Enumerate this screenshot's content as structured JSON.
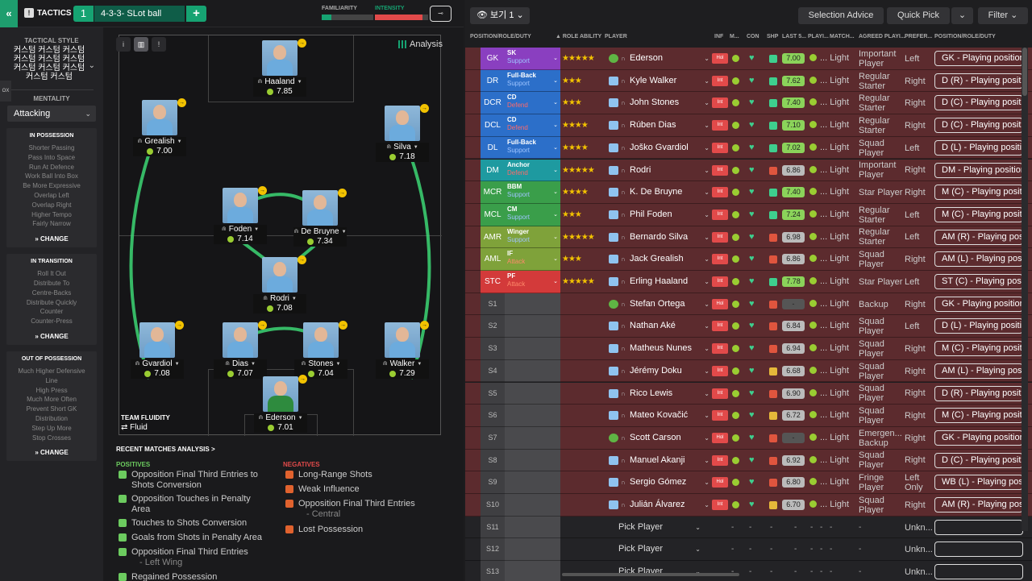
{
  "topbar": {
    "back_icon": "double-chevron-left-icon",
    "tactics_label": "TACTICS",
    "tactic_number": "1",
    "tactic_name": "4-3-3- SLot ball",
    "add_label": "+",
    "familiarity_label": "FAMILIARITY",
    "intensity_label": "INTENSITY",
    "familiarity_fraction": 0.18,
    "intensity_fraction": 0.9,
    "settings_icon": "toggle-icon"
  },
  "sidebar": {
    "tab_label": "OX",
    "tactical_style_label": "TACTICAL STYLE",
    "tactical_style_lines": [
      "커스텀 커스텀 커스텀",
      "커스텀 커스텀 커스텀",
      "커스텀 커스텀 커스텀",
      "커스텀 커스텀"
    ],
    "mentality_label": "MENTALITY",
    "mentality_value": "Attacking",
    "in_possession": {
      "title": "IN POSSESSION",
      "items": [
        "Shorter Passing",
        "Pass Into Space",
        "Run At Defence",
        "Work Ball Into Box",
        "Be More Expressive",
        "Overlap Left",
        "Overlap Right",
        "Higher Tempo",
        "Fairly Narrow"
      ],
      "change": "CHANGE"
    },
    "in_transition": {
      "title": "IN TRANSITION",
      "items": [
        "Roll It Out",
        "Distribute To",
        "Centre-Backs",
        "Distribute Quickly",
        "Counter",
        "Counter-Press"
      ],
      "change": "CHANGE"
    },
    "out_of_possession": {
      "title": "OUT OF POSSESSION",
      "items": [
        "Much Higher Defensive",
        "Line",
        "High Press",
        "Much More Often",
        "Prevent Short GK",
        "Distribution",
        "Step Up More",
        "Stop Crosses"
      ],
      "change": "CHANGE"
    }
  },
  "pitch": {
    "analysis_label": "Analysis",
    "players": [
      {
        "name": "Haaland",
        "rating": "7.85"
      },
      {
        "name": "Grealish",
        "rating": "7.00"
      },
      {
        "name": "Silva",
        "rating": "7.18"
      },
      {
        "name": "Foden",
        "rating": "7.14"
      },
      {
        "name": "De Bruyne",
        "rating": "7.34"
      },
      {
        "name": "Rodri",
        "rating": "7.08"
      },
      {
        "name": "Gvardiol",
        "rating": "7.08"
      },
      {
        "name": "Dias",
        "rating": "7.07"
      },
      {
        "name": "Stones",
        "rating": "7.04"
      },
      {
        "name": "Walker",
        "rating": "7.29"
      },
      {
        "name": "Ederson",
        "rating": "7.01"
      }
    ],
    "team_fluidity_label": "TEAM FLUIDITY",
    "team_fluidity_value": "Fluid"
  },
  "analysis": {
    "recent_label": "RECENT MATCHES ANALYSIS >",
    "positives_label": "POSITIVES",
    "negatives_label": "NEGATIVES",
    "positives": [
      {
        "text": "Opposition Final Third Entries to Shots Conversion",
        "sub": ""
      },
      {
        "text": "Opposition Touches in Penalty Area",
        "sub": ""
      },
      {
        "text": "Touches to Shots Conversion",
        "sub": ""
      },
      {
        "text": "Goals from Shots in Penalty Area",
        "sub": ""
      },
      {
        "text": "Opposition Final Third Entries",
        "sub": "- Left Wing"
      },
      {
        "text": "Regained Possession",
        "sub": ""
      }
    ],
    "negatives": [
      {
        "text": "Long-Range Shots",
        "sub": ""
      },
      {
        "text": "Weak Influence",
        "sub": ""
      },
      {
        "text": "Opposition Final Third Entries",
        "sub": "- Central"
      },
      {
        "text": "Lost Possession",
        "sub": ""
      }
    ]
  },
  "right_panel": {
    "view_label": "보기 1",
    "selection_advice": "Selection Advice",
    "quick_pick": "Quick Pick",
    "filter": "Filter",
    "columns": {
      "pos": "POSITION/ROLE/DUTY",
      "role_ability": "ROLE ABILITY",
      "player": "PLAYER",
      "inf": "INF",
      "m": "M...",
      "con": "CON",
      "shp": "SHP",
      "last5": "LAST 5...",
      "playing": "PLAYI...",
      "match": "MATCH...",
      "agreed": "AGREED PLAYI...",
      "pref": "PREFER...",
      "prd": "POSITION/ROLE/DUTY"
    },
    "starters": [
      {
        "pos": "GK",
        "role": "SK",
        "duty": "Support",
        "stars": "★★★★★",
        "player": "Ederson",
        "inf": "Hol",
        "last": "7.00",
        "playing": "Light",
        "agreed": "Important Player",
        "pref": "Left",
        "prd": "GK - Playing position"
      },
      {
        "pos": "DR",
        "role": "Full-Back",
        "duty": "Support",
        "stars": "★★★",
        "player": "Kyle Walker",
        "inf": "Int",
        "last": "7.62",
        "playing": "Light",
        "agreed": "Regular Starter",
        "pref": "Right",
        "prd": "D (R) - Playing position"
      },
      {
        "pos": "DCR",
        "role": "CD",
        "duty": "Defend",
        "stars": "★★★",
        "player": "John Stones",
        "inf": "Int",
        "last": "7.40",
        "playing": "Light",
        "agreed": "Regular Starter",
        "pref": "Right",
        "prd": "D (C) - Playing position"
      },
      {
        "pos": "DCL",
        "role": "CD",
        "duty": "Defend",
        "stars": "★★★★",
        "player": "Rúben Dias",
        "inf": "Int",
        "last": "7.10",
        "playing": "Light",
        "agreed": "Regular Starter",
        "pref": "Right",
        "prd": "D (C) - Playing position"
      },
      {
        "pos": "DL",
        "role": "Full-Back",
        "duty": "Support",
        "stars": "★★★★",
        "player": "Joško Gvardiol",
        "inf": "Int",
        "last": "7.02",
        "playing": "Light",
        "agreed": "Squad Player",
        "pref": "Left",
        "prd": "D (L) - Playing position"
      },
      {
        "pos": "DM",
        "role": "Anchor",
        "duty": "Defend",
        "stars": "★★★★★",
        "player": "Rodri",
        "inf": "Int",
        "last": "6.86",
        "playing": "Light",
        "agreed": "Important Player",
        "pref": "Right",
        "prd": "DM - Playing position"
      },
      {
        "pos": "MCR",
        "role": "BBM",
        "duty": "Support",
        "stars": "★★★★",
        "player": "K. De Bruyne",
        "inf": "Int",
        "last": "7.40",
        "playing": "Light",
        "agreed": "Star Player",
        "pref": "Right",
        "prd": "M (C) - Playing position"
      },
      {
        "pos": "MCL",
        "role": "CM",
        "duty": "Support",
        "stars": "★★★",
        "player": "Phil Foden",
        "inf": "Int",
        "last": "7.24",
        "playing": "Light",
        "agreed": "Regular Starter",
        "pref": "Left",
        "prd": "M (C) - Playing position"
      },
      {
        "pos": "AMR",
        "role": "Winger",
        "duty": "Support",
        "stars": "★★★★★",
        "player": "Bernardo Silva",
        "inf": "Int",
        "last": "6.98",
        "playing": "Light",
        "agreed": "Regular Starter",
        "pref": "Left",
        "prd": "AM (R) - Playing position"
      },
      {
        "pos": "AML",
        "role": "IF",
        "duty": "Attack",
        "stars": "★★★",
        "player": "Jack Grealish",
        "inf": "Int",
        "last": "6.86",
        "playing": "Light",
        "agreed": "Squad Player",
        "pref": "Right",
        "prd": "AM (L) - Playing position"
      },
      {
        "pos": "STC",
        "role": "PF",
        "duty": "Attack",
        "stars": "★★★★★",
        "player": "Erling Haaland",
        "inf": "Int",
        "last": "7.78",
        "playing": "Light",
        "agreed": "Star Player",
        "pref": "Left",
        "prd": "ST (C) - Playing position"
      }
    ],
    "subs": [
      {
        "pos": "S1",
        "player": "Stefan Ortega",
        "inf": "Hol",
        "last": "-",
        "playing": "Light",
        "agreed": "Backup",
        "pref": "Right",
        "prd": "GK - Playing position"
      },
      {
        "pos": "S2",
        "player": "Nathan Aké",
        "inf": "Int",
        "last": "6.84",
        "playing": "Light",
        "agreed": "Squad Player",
        "pref": "Left",
        "prd": "D (L) - Playing position"
      },
      {
        "pos": "S3",
        "player": "Matheus Nunes",
        "inf": "Int",
        "last": "6.94",
        "playing": "Light",
        "agreed": "Squad Player",
        "pref": "Right",
        "prd": "M (C) - Playing position"
      },
      {
        "pos": "S4",
        "player": "Jérémy Doku",
        "inf": "Int",
        "last": "6.68",
        "playing": "Light",
        "agreed": "Squad Player",
        "pref": "Right",
        "prd": "AM (L) - Playing position"
      },
      {
        "pos": "S5",
        "player": "Rico Lewis",
        "inf": "Int",
        "last": "6.90",
        "playing": "Light",
        "agreed": "Squad Player",
        "pref": "Right",
        "prd": "D (R) - Playing position"
      },
      {
        "pos": "S6",
        "player": "Mateo Kovačić",
        "inf": "Int",
        "last": "6.72",
        "playing": "Light",
        "agreed": "Squad Player",
        "pref": "Right",
        "prd": "M (C) - Playing position"
      },
      {
        "pos": "S7",
        "player": "Scott Carson",
        "inf": "Hol",
        "last": "-",
        "playing": "Light",
        "agreed": "Emergen... Backup",
        "pref": "Right",
        "prd": "GK - Playing position"
      },
      {
        "pos": "S8",
        "player": "Manuel Akanji",
        "inf": "Int",
        "last": "6.92",
        "playing": "Light",
        "agreed": "Squad Player",
        "pref": "Right",
        "prd": "D (C) - Playing position"
      },
      {
        "pos": "S9",
        "player": "Sergio Gómez",
        "inf": "Hol",
        "last": "6.80",
        "playing": "Light",
        "agreed": "Fringe Player",
        "pref": "Left Only",
        "prd": "WB (L) - Playing position"
      },
      {
        "pos": "S10",
        "player": "Julián Álvarez",
        "inf": "Int",
        "last": "6.70",
        "playing": "Light",
        "agreed": "Squad Player",
        "pref": "Right",
        "prd": "AM (R) - Playing position"
      }
    ],
    "empty_subs": [
      {
        "pos": "S11",
        "pick": "Pick Player",
        "pref": "Unkn..."
      },
      {
        "pos": "S12",
        "pick": "Pick Player",
        "pref": "Unkn..."
      },
      {
        "pos": "S13",
        "pick": "Pick Player",
        "pref": "Unkn..."
      }
    ]
  }
}
